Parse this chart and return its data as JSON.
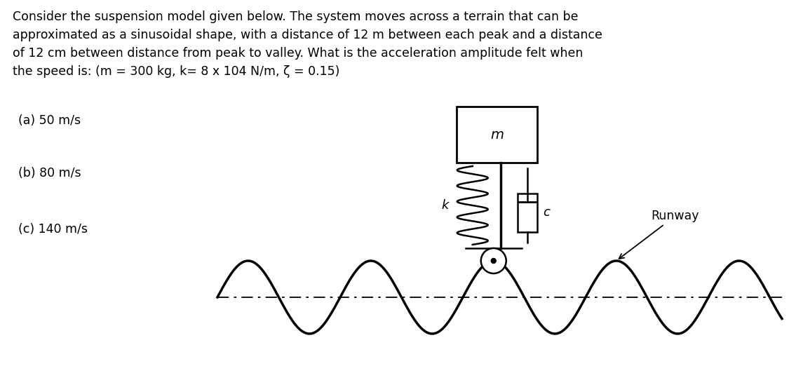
{
  "background_color": "#ffffff",
  "text_color": "#000000",
  "para_lines": [
    "Consider the suspension model given below. The system moves across a terrain that can be",
    "approximated as a sinusoidal shape, with a distance of 12 m between each peak and a distance",
    "of 12 cm between distance from peak to valley. What is the acceleration amplitude felt when",
    "the speed is: (m = 300 kg, k= 8 x 104 N/m, ζ = 0.15)"
  ],
  "items": [
    "(a) 50 m/s",
    "(b) 80 m/s",
    "(c) 140 m/s"
  ],
  "label_m": "m",
  "label_k": "k",
  "label_c": "c",
  "label_runway": "Runway",
  "fig_width": 11.35,
  "fig_height": 5.42,
  "dpi": 100,
  "text_fontsize": 12.5,
  "item_fontsize": 12.5
}
